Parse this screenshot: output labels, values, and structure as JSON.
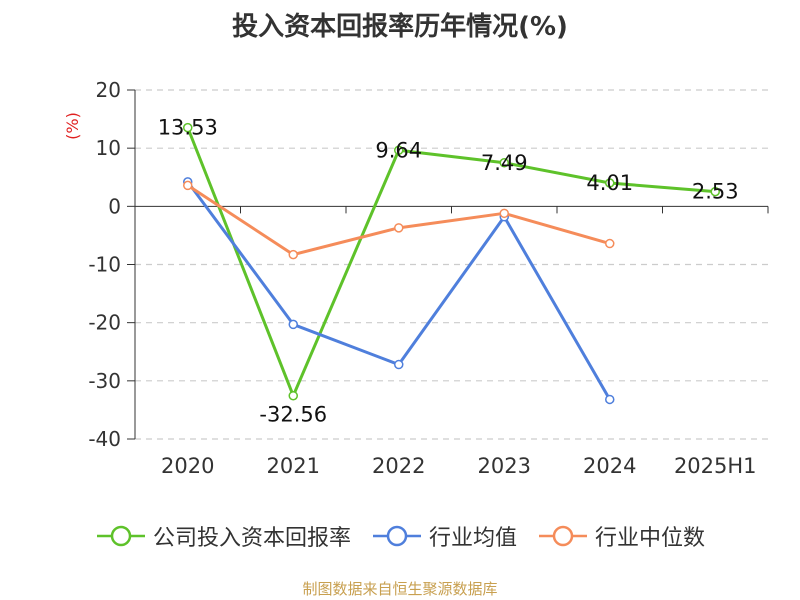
{
  "chart_data": {
    "type": "line",
    "title": "投入资本回报率历年情况(%)",
    "ylabel": "(%)",
    "xlabel": "",
    "categories": [
      "2020",
      "2021",
      "2022",
      "2023",
      "2024",
      "2025H1"
    ],
    "ylim": [
      -40,
      20
    ],
    "yticks": [
      20,
      10,
      0,
      -10,
      -20,
      -30,
      -40
    ],
    "grid": true,
    "legend_position": "bottom",
    "series": [
      {
        "name": "公司投入资本回报率",
        "color": "#5ec22a",
        "values": [
          13.53,
          -32.56,
          9.64,
          7.49,
          4.01,
          2.53
        ],
        "labels": [
          "13.53",
          "-32.56",
          "9.64",
          "7.49",
          "4.01",
          "2.53"
        ]
      },
      {
        "name": "行业均值",
        "color": "#4f7fdc",
        "values": [
          4.2,
          -20.3,
          -27.2,
          -1.8,
          -33.2,
          null
        ]
      },
      {
        "name": "行业中位数",
        "color": "#f58c5a",
        "values": [
          3.6,
          -8.3,
          -3.7,
          -1.2,
          -6.4,
          null
        ]
      }
    ]
  },
  "source": "制图数据来自恒生聚源数据库"
}
